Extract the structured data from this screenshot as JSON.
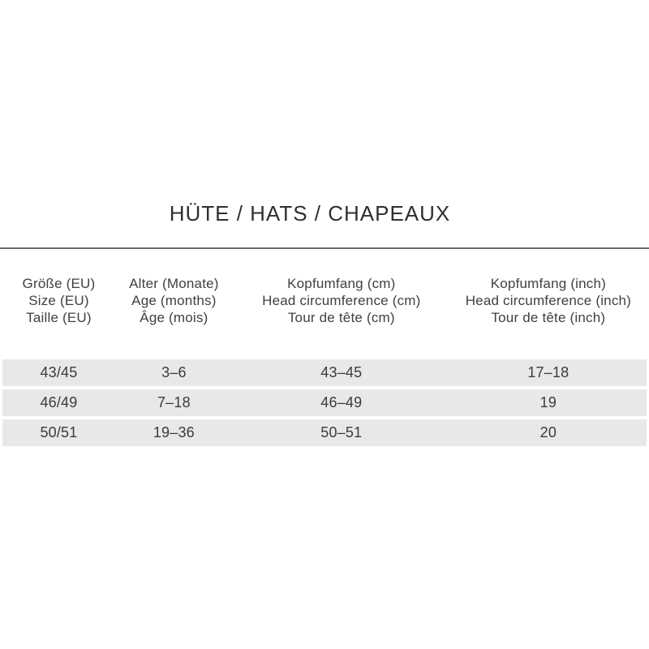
{
  "colors": {
    "background": "#ffffff",
    "row_stripe": "#e9e8e6",
    "text": "#3b3b3b",
    "divider": "#6b6b6b"
  },
  "chart_data": {
    "type": "table",
    "title": "HÜTE / HATS / CHAPEAUX",
    "columns": [
      {
        "lines": [
          "Größe (EU)",
          "Size (EU)",
          "Taille (EU)"
        ]
      },
      {
        "lines": [
          "Alter (Monate)",
          "Age (months)",
          "Âge (mois)"
        ]
      },
      {
        "lines": [
          "Kopfumfang (cm)",
          "Head circumference (cm)",
          "Tour de tête (cm)"
        ]
      },
      {
        "lines": [
          "Kopfumfang (inch)",
          "Head circumference (inch)",
          "Tour de tête (inch)"
        ]
      }
    ],
    "rows": [
      [
        "43/45",
        "3–6",
        "43–45",
        "17–18"
      ],
      [
        "46/49",
        "7–18",
        "46–49",
        "19"
      ],
      [
        "50/51",
        "19–36",
        "50–51",
        "20"
      ]
    ]
  }
}
